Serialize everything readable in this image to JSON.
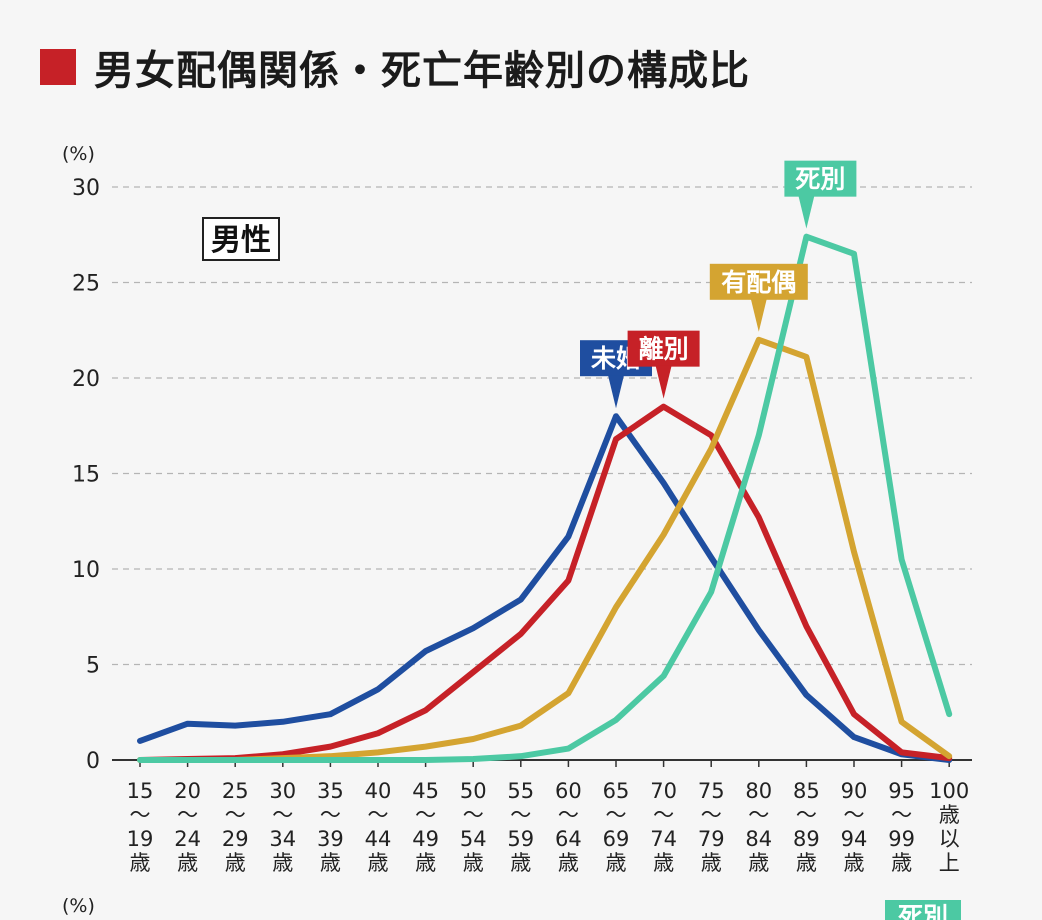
{
  "title": "男女配偶関係・死亡年齢別の構成比",
  "colors": {
    "title_square": "#c62127",
    "grid": "#b5b5b5",
    "axis": "#333333"
  },
  "chart_data": {
    "type": "line",
    "panel_label": "男性",
    "ylabel": "(%)",
    "ylim": [
      0,
      30
    ],
    "yticks": [
      0,
      5,
      10,
      15,
      20,
      25,
      30
    ],
    "grid": "dashed horizontal",
    "categories": [
      [
        "15",
        "〜",
        "19",
        "歳"
      ],
      [
        "20",
        "〜",
        "24",
        "歳"
      ],
      [
        "25",
        "〜",
        "29",
        "歳"
      ],
      [
        "30",
        "〜",
        "34",
        "歳"
      ],
      [
        "35",
        "〜",
        "39",
        "歳"
      ],
      [
        "40",
        "〜",
        "44",
        "歳"
      ],
      [
        "45",
        "〜",
        "49",
        "歳"
      ],
      [
        "50",
        "〜",
        "54",
        "歳"
      ],
      [
        "55",
        "〜",
        "59",
        "歳"
      ],
      [
        "60",
        "〜",
        "64",
        "歳"
      ],
      [
        "65",
        "〜",
        "69",
        "歳"
      ],
      [
        "70",
        "〜",
        "74",
        "歳"
      ],
      [
        "75",
        "〜",
        "79",
        "歳"
      ],
      [
        "80",
        "〜",
        "84",
        "歳"
      ],
      [
        "85",
        "〜",
        "89",
        "歳"
      ],
      [
        "90",
        "〜",
        "94",
        "歳"
      ],
      [
        "95",
        "〜",
        "99",
        "歳"
      ],
      [
        "100",
        "歳",
        "以",
        "上"
      ]
    ],
    "series": [
      {
        "name": "未婚",
        "color": "#1f4ea0",
        "values": [
          1.0,
          1.9,
          1.8,
          2.0,
          2.4,
          3.7,
          5.7,
          6.9,
          8.4,
          11.7,
          18.0,
          14.5,
          10.6,
          6.8,
          3.4,
          1.2,
          0.3,
          0.0
        ],
        "label_at": 10
      },
      {
        "name": "離別",
        "color": "#c62127",
        "values": [
          0.0,
          0.05,
          0.1,
          0.3,
          0.7,
          1.4,
          2.6,
          4.6,
          6.6,
          9.4,
          16.8,
          18.5,
          17.0,
          12.7,
          7.0,
          2.4,
          0.4,
          0.1
        ],
        "label_at": 11
      },
      {
        "name": "有配偶",
        "color": "#d4a431",
        "values": [
          0.0,
          0.0,
          0.0,
          0.1,
          0.2,
          0.4,
          0.7,
          1.1,
          1.8,
          3.5,
          8.0,
          11.8,
          16.3,
          22.0,
          21.1,
          10.9,
          2.0,
          0.2
        ],
        "label_at": 13
      },
      {
        "name": "死別",
        "color": "#4cc9a3",
        "values": [
          0.0,
          0.0,
          0.0,
          0.0,
          0.0,
          0.0,
          0.0,
          0.05,
          0.2,
          0.6,
          2.1,
          4.4,
          8.8,
          17.0,
          27.4,
          26.5,
          10.5,
          2.4
        ],
        "label_at": 14
      }
    ],
    "next_panel": {
      "ylabel": "(%)",
      "partial_label": "死別"
    }
  }
}
